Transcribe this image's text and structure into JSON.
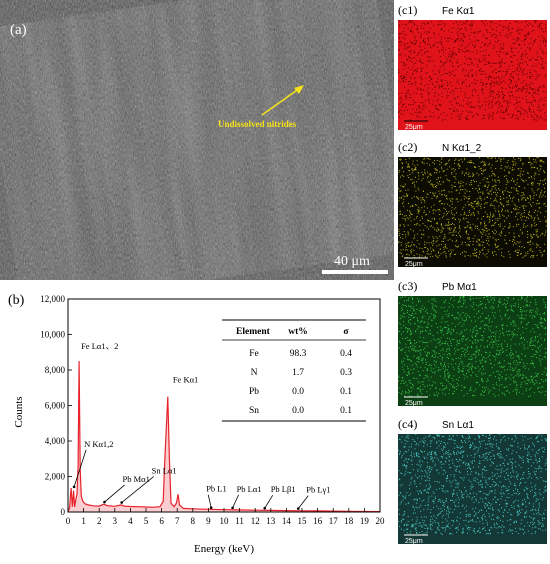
{
  "panel_a": {
    "label": "(a)",
    "annotation": "Undissolved nitrides",
    "scale_bar": "40 μm",
    "colors": {
      "background": "#5c5c5c",
      "annotation": "#f5e31a"
    }
  },
  "maps": [
    {
      "label": "(c1)",
      "title": "Fe Kα1",
      "scale": "25μm",
      "color": "#e0121a",
      "dot": "#5a0000"
    },
    {
      "label": "(c2)",
      "title": "N Kα1_2",
      "scale": "25μm",
      "color": "#0c0c02",
      "dot": "#b8b020"
    },
    {
      "label": "(c3)",
      "title": "Pb Mα1",
      "scale": "25μm",
      "color": "#0d3f14",
      "dot": "#3ac24a"
    },
    {
      "label": "(c4)",
      "title": "Sn Lα1",
      "scale": "25μm",
      "color": "#133836",
      "dot": "#4ac6c2"
    }
  ],
  "chart_data": {
    "type": "area",
    "panel_label": "(b)",
    "xlabel": "Energy (keV)",
    "ylabel": "Counts",
    "xlim": [
      0,
      20
    ],
    "ylim": [
      0,
      12000
    ],
    "xticks": [
      0,
      1,
      2,
      3,
      4,
      5,
      6,
      7,
      8,
      9,
      10,
      11,
      12,
      13,
      14,
      15,
      16,
      17,
      18,
      19,
      20
    ],
    "yticks": [
      0,
      2000,
      4000,
      6000,
      8000,
      10000,
      12000
    ],
    "ytick_labels": [
      "0",
      "2,000",
      "4,000",
      "6,000",
      "8,000",
      "10,000",
      "12,000"
    ],
    "color": "#e8222a",
    "spectrum": [
      [
        0.0,
        0
      ],
      [
        0.1,
        250
      ],
      [
        0.2,
        1350
      ],
      [
        0.28,
        300
      ],
      [
        0.36,
        1200
      ],
      [
        0.42,
        280
      ],
      [
        0.5,
        700
      ],
      [
        0.58,
        1000
      ],
      [
        0.65,
        2600
      ],
      [
        0.71,
        8500
      ],
      [
        0.78,
        2400
      ],
      [
        0.85,
        900
      ],
      [
        0.95,
        600
      ],
      [
        1.1,
        450
      ],
      [
        1.3,
        400
      ],
      [
        1.6,
        350
      ],
      [
        2.0,
        330
      ],
      [
        2.3,
        440
      ],
      [
        2.5,
        360
      ],
      [
        3.0,
        320
      ],
      [
        3.4,
        400
      ],
      [
        3.6,
        330
      ],
      [
        4.0,
        310
      ],
      [
        4.5,
        300
      ],
      [
        5.0,
        280
      ],
      [
        5.5,
        270
      ],
      [
        5.9,
        300
      ],
      [
        6.1,
        600
      ],
      [
        6.2,
        2800
      ],
      [
        6.4,
        6500
      ],
      [
        6.5,
        3000
      ],
      [
        6.6,
        500
      ],
      [
        6.8,
        300
      ],
      [
        6.95,
        500
      ],
      [
        7.06,
        1000
      ],
      [
        7.15,
        400
      ],
      [
        7.4,
        200
      ],
      [
        8.0,
        180
      ],
      [
        9.0,
        150
      ],
      [
        10.0,
        130
      ],
      [
        11.0,
        120
      ],
      [
        12.0,
        100
      ],
      [
        13.0,
        90
      ],
      [
        14.0,
        80
      ],
      [
        15.0,
        70
      ],
      [
        16.0,
        60
      ],
      [
        17.0,
        50
      ],
      [
        18.0,
        40
      ],
      [
        19.0,
        30
      ],
      [
        20.0,
        20
      ]
    ],
    "annotations": [
      {
        "text": "Fe Lα1、2",
        "x": 0.71,
        "y": 8500
      },
      {
        "text": "Fe Kα1",
        "x": 6.4,
        "y": 6500
      },
      {
        "text": "N Kα1,2",
        "x": 0.39,
        "y": 1300
      },
      {
        "text": "Pb Mα1",
        "x": 2.34,
        "y": 450
      },
      {
        "text": "Sn Lα1",
        "x": 3.44,
        "y": 420
      },
      {
        "text": "Pb L1",
        "x": 9.18,
        "y": 130
      },
      {
        "text": "Pb Lα1",
        "x": 10.55,
        "y": 120
      },
      {
        "text": "Pb Lβ1",
        "x": 12.61,
        "y": 100
      },
      {
        "text": "Pb Lγ1",
        "x": 14.76,
        "y": 80
      }
    ],
    "table": {
      "headers": [
        "Element",
        "wt%",
        "σ"
      ],
      "rows": [
        [
          "Fe",
          "98.3",
          "0.4"
        ],
        [
          "N",
          "1.7",
          "0.3"
        ],
        [
          "Pb",
          "0.0",
          "0.1"
        ],
        [
          "Sn",
          "0.0",
          "0.1"
        ]
      ]
    }
  }
}
